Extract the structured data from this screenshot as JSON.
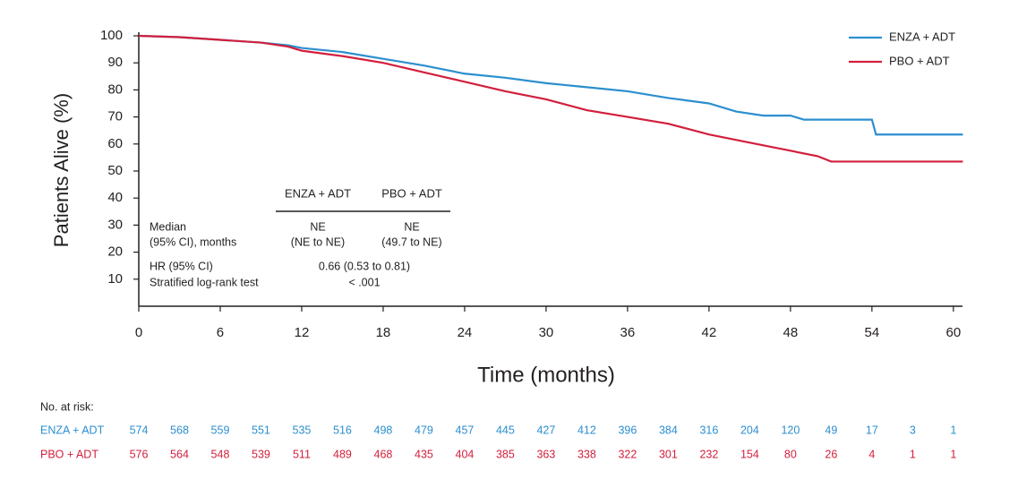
{
  "chart_data": {
    "type": "line",
    "x_label": "Time (months)",
    "y_label": "Patients Alive (%)",
    "xlim": [
      0,
      61
    ],
    "ylim": [
      0,
      100
    ],
    "xticks": [
      0,
      6,
      12,
      18,
      24,
      30,
      36,
      42,
      48,
      54,
      60
    ],
    "yticks": [
      10,
      20,
      30,
      40,
      50,
      60,
      70,
      80,
      90,
      100
    ],
    "legend": "top-right",
    "series": [
      {
        "name": "ENZA + ADT",
        "color": "#2b8fcf",
        "x": [
          0,
          3,
          6,
          9,
          11,
          12,
          15,
          18,
          21,
          24,
          27,
          30,
          33,
          36,
          39,
          42,
          44,
          46,
          48,
          49,
          52,
          54,
          54.3,
          57,
          60.7
        ],
        "values": [
          100,
          99.5,
          98.5,
          97.5,
          96.5,
          95.5,
          94,
          91.5,
          89,
          86,
          84.5,
          82.5,
          81,
          79.5,
          77,
          75,
          72,
          70.5,
          70.5,
          69,
          69,
          69,
          63.5,
          63.5,
          63.5
        ]
      },
      {
        "name": "PBO + ADT",
        "color": "#d21f3c",
        "x": [
          0,
          3,
          6,
          9,
          11,
          12,
          15,
          18,
          21,
          24,
          27,
          30,
          33,
          36,
          39,
          42,
          45,
          48,
          50,
          51,
          54,
          60.7
        ],
        "values": [
          100,
          99.5,
          98.5,
          97.5,
          96,
          94.5,
          92.5,
          90,
          86.5,
          83,
          79.5,
          76.5,
          72.5,
          70,
          67.5,
          63.5,
          60.5,
          57.5,
          55.5,
          53.5,
          53.5,
          53.5
        ]
      }
    ],
    "inset": {
      "columns": [
        "ENZA + ADT",
        "PBO + ADT"
      ],
      "rows": [
        {
          "label": "Median",
          "cells": [
            "NE",
            "NE"
          ]
        },
        {
          "label": "(95% CI), months",
          "cells": [
            "(NE to NE)",
            "(49.7 to NE)"
          ]
        },
        {
          "label": "HR (95% CI)",
          "cells": [
            "0.66 (0.53 to 0.81)"
          ]
        },
        {
          "label": "Stratified log-rank test",
          "cells": [
            "< .001"
          ]
        }
      ]
    },
    "risk_table": {
      "title": "No. at risk:",
      "rows": [
        {
          "name": "ENZA + ADT",
          "color": "#2b8fcf",
          "values": [
            574,
            568,
            559,
            551,
            535,
            516,
            498,
            479,
            457,
            445,
            427,
            412,
            396,
            384,
            316,
            204,
            120,
            49,
            17,
            3,
            1
          ]
        },
        {
          "name": "PBO + ADT",
          "color": "#d21f3c",
          "values": [
            576,
            564,
            548,
            539,
            511,
            489,
            468,
            435,
            404,
            385,
            363,
            338,
            322,
            301,
            232,
            154,
            80,
            26,
            4,
            1,
            1
          ]
        }
      ]
    }
  }
}
